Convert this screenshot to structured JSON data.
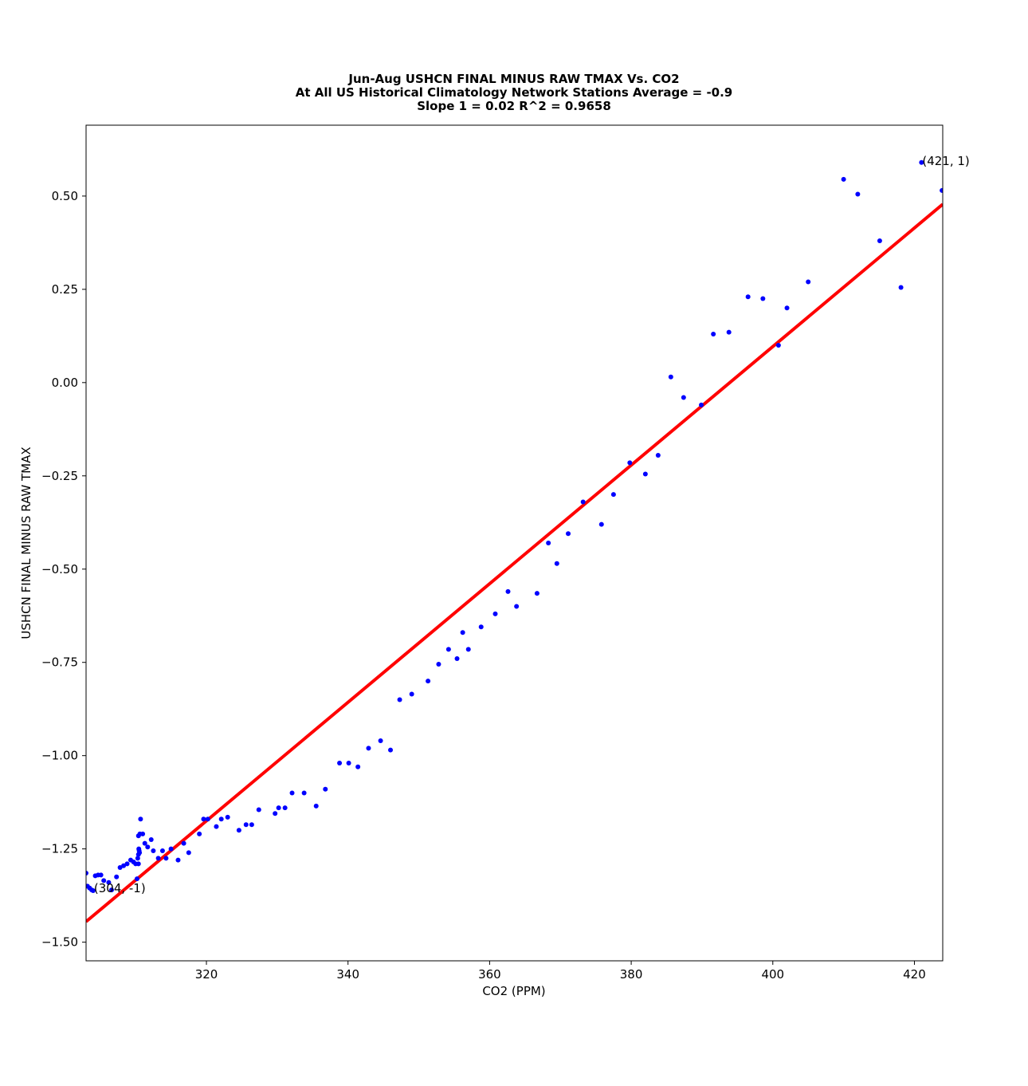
{
  "chart_data": {
    "type": "scatter",
    "title_lines": [
      "Jun-Aug USHCN FINAL MINUS RAW TMAX Vs. CO2",
      "At All US Historical Climatology Network Stations Average = -0.9",
      "Slope 1 = 0.02 R^2 = 0.9658"
    ],
    "xlabel": "CO2 (PPM)",
    "ylabel": "USHCN FINAL MINUS RAW TMAX",
    "xlim": [
      303,
      424
    ],
    "ylim": [
      -1.55,
      0.69
    ],
    "xticks": [
      320,
      340,
      360,
      380,
      400,
      420
    ],
    "xtick_labels": [
      "320",
      "340",
      "360",
      "380",
      "400",
      "420"
    ],
    "yticks": [
      0.5,
      0.25,
      0.0,
      -0.25,
      -0.5,
      -0.75,
      -1.0,
      -1.25,
      -1.5
    ],
    "ytick_labels": [
      "0.50",
      "0.25",
      "0.00",
      "−0.25",
      "−0.50",
      "−0.75",
      "−1.00",
      "−1.25",
      "−1.50"
    ],
    "grid": false,
    "point_color": "#0000ff",
    "fit_color": "#ff0000",
    "fit_line": {
      "x": [
        303,
        424
      ],
      "y": [
        -1.445,
        0.478
      ]
    },
    "annotations": [
      {
        "text": "(304, -1)",
        "x": 304,
        "y": -1.36
      },
      {
        "text": "(421, 1)",
        "x": 421,
        "y": 0.59
      }
    ],
    "points": [
      [
        303.0,
        -1.315
      ],
      [
        303.2,
        -1.35
      ],
      [
        303.5,
        -1.355
      ],
      [
        303.8,
        -1.36
      ],
      [
        304.0,
        -1.362
      ],
      [
        304.3,
        -1.322
      ],
      [
        304.7,
        -1.32
      ],
      [
        305.1,
        -1.32
      ],
      [
        305.5,
        -1.335
      ],
      [
        306.2,
        -1.34
      ],
      [
        306.6,
        -1.36
      ],
      [
        307.3,
        -1.325
      ],
      [
        307.8,
        -1.3
      ],
      [
        308.3,
        -1.295
      ],
      [
        308.8,
        -1.29
      ],
      [
        309.3,
        -1.28
      ],
      [
        309.7,
        -1.285
      ],
      [
        310.0,
        -1.29
      ],
      [
        310.2,
        -1.33
      ],
      [
        310.3,
        -1.275
      ],
      [
        310.4,
        -1.265
      ],
      [
        310.45,
        -1.25
      ],
      [
        310.5,
        -1.255
      ],
      [
        310.55,
        -1.26
      ],
      [
        310.4,
        -1.29
      ],
      [
        310.6,
        -1.21
      ],
      [
        310.4,
        -1.215
      ],
      [
        310.7,
        -1.17
      ],
      [
        311.0,
        -1.21
      ],
      [
        311.3,
        -1.235
      ],
      [
        311.7,
        -1.245
      ],
      [
        312.2,
        -1.225
      ],
      [
        312.5,
        -1.255
      ],
      [
        313.2,
        -1.275
      ],
      [
        313.8,
        -1.255
      ],
      [
        314.3,
        -1.275
      ],
      [
        315.0,
        -1.25
      ],
      [
        316.0,
        -1.28
      ],
      [
        316.8,
        -1.235
      ],
      [
        317.5,
        -1.26
      ],
      [
        319.0,
        -1.21
      ],
      [
        319.6,
        -1.17
      ],
      [
        320.2,
        -1.17
      ],
      [
        321.4,
        -1.19
      ],
      [
        322.1,
        -1.17
      ],
      [
        323.0,
        -1.165
      ],
      [
        324.6,
        -1.2
      ],
      [
        325.6,
        -1.185
      ],
      [
        326.4,
        -1.185
      ],
      [
        327.4,
        -1.145
      ],
      [
        329.7,
        -1.155
      ],
      [
        330.2,
        -1.14
      ],
      [
        331.1,
        -1.14
      ],
      [
        332.1,
        -1.1
      ],
      [
        333.8,
        -1.1
      ],
      [
        335.5,
        -1.135
      ],
      [
        336.8,
        -1.09
      ],
      [
        338.8,
        -1.02
      ],
      [
        340.1,
        -1.02
      ],
      [
        341.4,
        -1.03
      ],
      [
        342.9,
        -0.98
      ],
      [
        344.6,
        -0.96
      ],
      [
        346.0,
        -0.985
      ],
      [
        347.3,
        -0.85
      ],
      [
        349.0,
        -0.835
      ],
      [
        351.3,
        -0.8
      ],
      [
        352.8,
        -0.755
      ],
      [
        354.2,
        -0.715
      ],
      [
        355.4,
        -0.74
      ],
      [
        356.2,
        -0.67
      ],
      [
        357.0,
        -0.715
      ],
      [
        358.8,
        -0.655
      ],
      [
        360.8,
        -0.62
      ],
      [
        362.6,
        -0.56
      ],
      [
        363.8,
        -0.6
      ],
      [
        366.7,
        -0.565
      ],
      [
        368.3,
        -0.43
      ],
      [
        369.5,
        -0.485
      ],
      [
        371.1,
        -0.405
      ],
      [
        373.2,
        -0.32
      ],
      [
        375.8,
        -0.38
      ],
      [
        377.5,
        -0.3
      ],
      [
        379.8,
        -0.215
      ],
      [
        382.0,
        -0.245
      ],
      [
        383.8,
        -0.195
      ],
      [
        385.6,
        0.015
      ],
      [
        387.4,
        -0.04
      ],
      [
        389.9,
        -0.06
      ],
      [
        391.6,
        0.13
      ],
      [
        393.8,
        0.135
      ],
      [
        396.5,
        0.23
      ],
      [
        398.6,
        0.225
      ],
      [
        400.8,
        0.1
      ],
      [
        402.0,
        0.2
      ],
      [
        405.0,
        0.27
      ],
      [
        410.0,
        0.545
      ],
      [
        412.0,
        0.505
      ],
      [
        415.1,
        0.38
      ],
      [
        418.1,
        0.255
      ],
      [
        421.0,
        0.59
      ],
      [
        423.9,
        0.515
      ]
    ]
  }
}
